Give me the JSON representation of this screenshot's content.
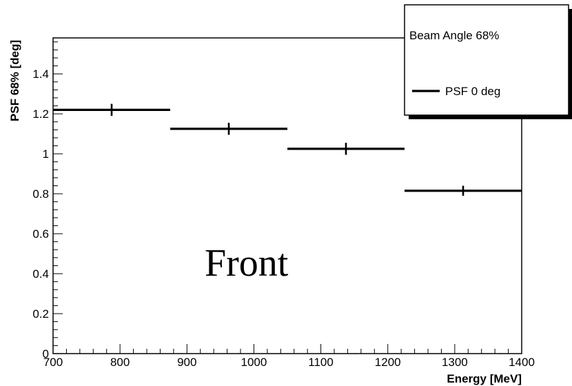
{
  "chart_data": {
    "type": "scatter",
    "title": "",
    "xlabel": "Energy [MeV]",
    "ylabel": "PSF 68% [deg]",
    "xlim": [
      700,
      1400
    ],
    "ylim": [
      0,
      1.58
    ],
    "x_ticks": [
      700,
      800,
      900,
      1000,
      1100,
      1200,
      1300,
      1400
    ],
    "y_ticks": [
      0,
      0.2,
      0.4,
      0.6,
      0.8,
      1,
      1.2,
      1.4
    ],
    "x_tick_labels": [
      "700",
      "800",
      "900",
      "1000",
      "1100",
      "1200",
      "1300",
      "1400"
    ],
    "y_tick_labels": [
      "0",
      "0.2",
      "0.4",
      "0.6",
      "0.8",
      "1",
      "1.2",
      "1.4"
    ],
    "grid": false,
    "legend": {
      "header": "Beam Angle 68%",
      "entries": [
        "PSF 0 deg"
      ],
      "placement": "top-right"
    },
    "annotation": "Front",
    "series": [
      {
        "name": "PSF 0 deg",
        "color": "#000000",
        "points": [
          {
            "x": 787.5,
            "x_low": 700,
            "x_high": 875,
            "y": 1.22,
            "y_err": 0.03
          },
          {
            "x": 962.5,
            "x_low": 875,
            "x_high": 1050,
            "y": 1.125,
            "y_err": 0.03
          },
          {
            "x": 1137.5,
            "x_low": 1050,
            "x_high": 1225,
            "y": 1.025,
            "y_err": 0.03
          },
          {
            "x": 1312.5,
            "x_low": 1225,
            "x_high": 1400,
            "y": 0.815,
            "y_err": 0.025
          }
        ]
      }
    ]
  }
}
